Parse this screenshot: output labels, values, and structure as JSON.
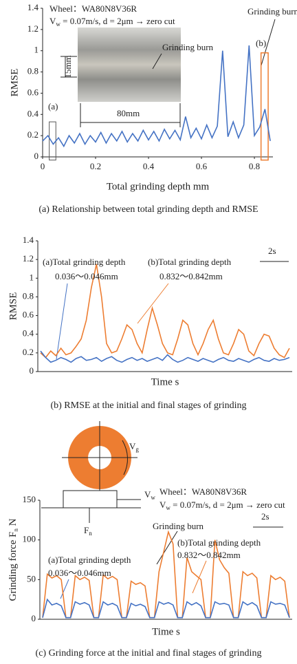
{
  "chart_data": [
    {
      "type": "line",
      "ylabel": "RMSE",
      "xlabel": "Total grinding depth mm",
      "caption": "(a) Relationship between total grinding depth and RMSE",
      "xlim": [
        0,
        0.87
      ],
      "xticks": [
        0,
        0.2,
        0.4,
        0.6,
        0.8
      ],
      "ylim": [
        0,
        1.4
      ],
      "yticks": [
        0,
        0.2,
        0.4,
        0.6,
        0.8,
        1,
        1.2,
        1.4
      ],
      "x": [
        0,
        0.02,
        0.04,
        0.06,
        0.08,
        0.1,
        0.12,
        0.14,
        0.16,
        0.18,
        0.2,
        0.22,
        0.24,
        0.26,
        0.28,
        0.3,
        0.32,
        0.34,
        0.36,
        0.38,
        0.4,
        0.42,
        0.44,
        0.46,
        0.48,
        0.5,
        0.52,
        0.54,
        0.56,
        0.58,
        0.6,
        0.62,
        0.64,
        0.66,
        0.68,
        0.7,
        0.72,
        0.74,
        0.76,
        0.78,
        0.8,
        0.82,
        0.84,
        0.86
      ],
      "series": [
        {
          "color": "#4472c4",
          "values": [
            0.15,
            0.2,
            0.12,
            0.18,
            0.1,
            0.2,
            0.13,
            0.22,
            0.12,
            0.2,
            0.14,
            0.23,
            0.13,
            0.22,
            0.15,
            0.24,
            0.14,
            0.22,
            0.15,
            0.25,
            0.16,
            0.24,
            0.15,
            0.26,
            0.17,
            0.25,
            0.16,
            0.38,
            0.18,
            0.27,
            0.17,
            0.3,
            0.18,
            0.29,
            1.0,
            0.19,
            0.33,
            0.18,
            0.3,
            1.05,
            0.2,
            0.28,
            0.45,
            0.15
          ]
        }
      ],
      "annotations": [
        "Wheel：WA80N8V36R",
        {
          "text": "V",
          "sub": "w",
          "rest": " = 0.07m/s, d = 2μm → zero cut"
        },
        "Grinding burn",
        "15mm",
        "80mm",
        "Grinding burn",
        "(a)",
        "(b)"
      ]
    },
    {
      "type": "line",
      "ylabel": "RMSE",
      "xlabel": "Time s",
      "caption": "(b) RMSE at the initial and final stages of grinding",
      "ylim": [
        0,
        1.4
      ],
      "yticks": [
        0,
        0.2,
        0.4,
        0.6,
        0.8,
        1,
        1.2,
        1.4
      ],
      "series": [
        {
          "color": "#ed7d31",
          "values": [
            0.2,
            0.15,
            0.22,
            0.17,
            0.25,
            0.18,
            0.2,
            0.27,
            0.35,
            0.55,
            0.9,
            1.15,
            0.8,
            0.3,
            0.2,
            0.22,
            0.35,
            0.5,
            0.45,
            0.3,
            0.2,
            0.45,
            0.68,
            0.5,
            0.3,
            0.2,
            0.18,
            0.35,
            0.55,
            0.5,
            0.3,
            0.18,
            0.3,
            0.45,
            0.55,
            0.35,
            0.2,
            0.18,
            0.3,
            0.45,
            0.4,
            0.22,
            0.17,
            0.3,
            0.4,
            0.38,
            0.25,
            0.18,
            0.15,
            0.25
          ]
        },
        {
          "color": "#4472c4",
          "values": [
            0.22,
            0.15,
            0.1,
            0.12,
            0.15,
            0.13,
            0.1,
            0.14,
            0.16,
            0.12,
            0.13,
            0.15,
            0.11,
            0.14,
            0.16,
            0.12,
            0.1,
            0.13,
            0.15,
            0.12,
            0.14,
            0.11,
            0.13,
            0.15,
            0.12,
            0.18,
            0.13,
            0.1,
            0.12,
            0.15,
            0.13,
            0.11,
            0.14,
            0.12,
            0.1,
            0.13,
            0.15,
            0.12,
            0.11,
            0.14,
            0.12,
            0.1,
            0.13,
            0.15,
            0.12,
            0.11,
            0.14,
            0.12,
            0.13,
            0.15
          ]
        }
      ],
      "annotations": [
        "(a)Total grinding depth",
        "0.036～0.046mm",
        "(b)Total grinding depth",
        "0.832～0.842mm",
        "2s"
      ]
    },
    {
      "type": "line",
      "ylabel": {
        "text": "Grinding force F",
        "sub": "n",
        "rest": " N"
      },
      "xlabel": "Time s",
      "caption": "(c) Grinding force at the initial and final stages of grinding",
      "ylim": [
        0,
        150
      ],
      "yticks": [
        0,
        50,
        100,
        150
      ],
      "series": [
        {
          "color": "#ed7d31",
          "values": [
            2,
            57,
            52,
            55,
            50,
            2,
            2,
            55,
            50,
            53,
            49,
            2,
            2,
            56,
            51,
            54,
            50,
            2,
            2,
            48,
            44,
            46,
            42,
            2,
            2,
            60,
            85,
            110,
            95,
            2,
            2,
            78,
            60,
            55,
            50,
            2,
            2,
            100,
            75,
            65,
            58,
            2,
            2,
            60,
            55,
            58,
            52,
            2,
            2,
            55,
            50,
            53,
            48,
            2
          ]
        },
        {
          "color": "#4472c4",
          "values": [
            2,
            25,
            18,
            20,
            17,
            2,
            2,
            22,
            19,
            21,
            18,
            2,
            2,
            22,
            18,
            20,
            17,
            2,
            2,
            20,
            17,
            19,
            16,
            2,
            2,
            22,
            19,
            21,
            18,
            2,
            2,
            22,
            18,
            21,
            17,
            2,
            2,
            22,
            19,
            20,
            18,
            2,
            2,
            22,
            18,
            21,
            17,
            2,
            2,
            22,
            19,
            20,
            18,
            2
          ]
        }
      ],
      "annotations": [
        "Wheel：WA80N8V36R",
        {
          "text": "V",
          "sub": "w",
          "rest": " = 0.07m/s, d = 2μm → zero cut"
        },
        "Grinding burn",
        "(a)Total grinding depth",
        "0.036～0.046mm",
        "(b)Total grinding depth",
        "0.832～0.842mm",
        "2s",
        {
          "text": "V",
          "sub": "g"
        },
        {
          "text": "V",
          "sub": "w"
        },
        {
          "text": "F",
          "sub": "n"
        }
      ]
    }
  ]
}
